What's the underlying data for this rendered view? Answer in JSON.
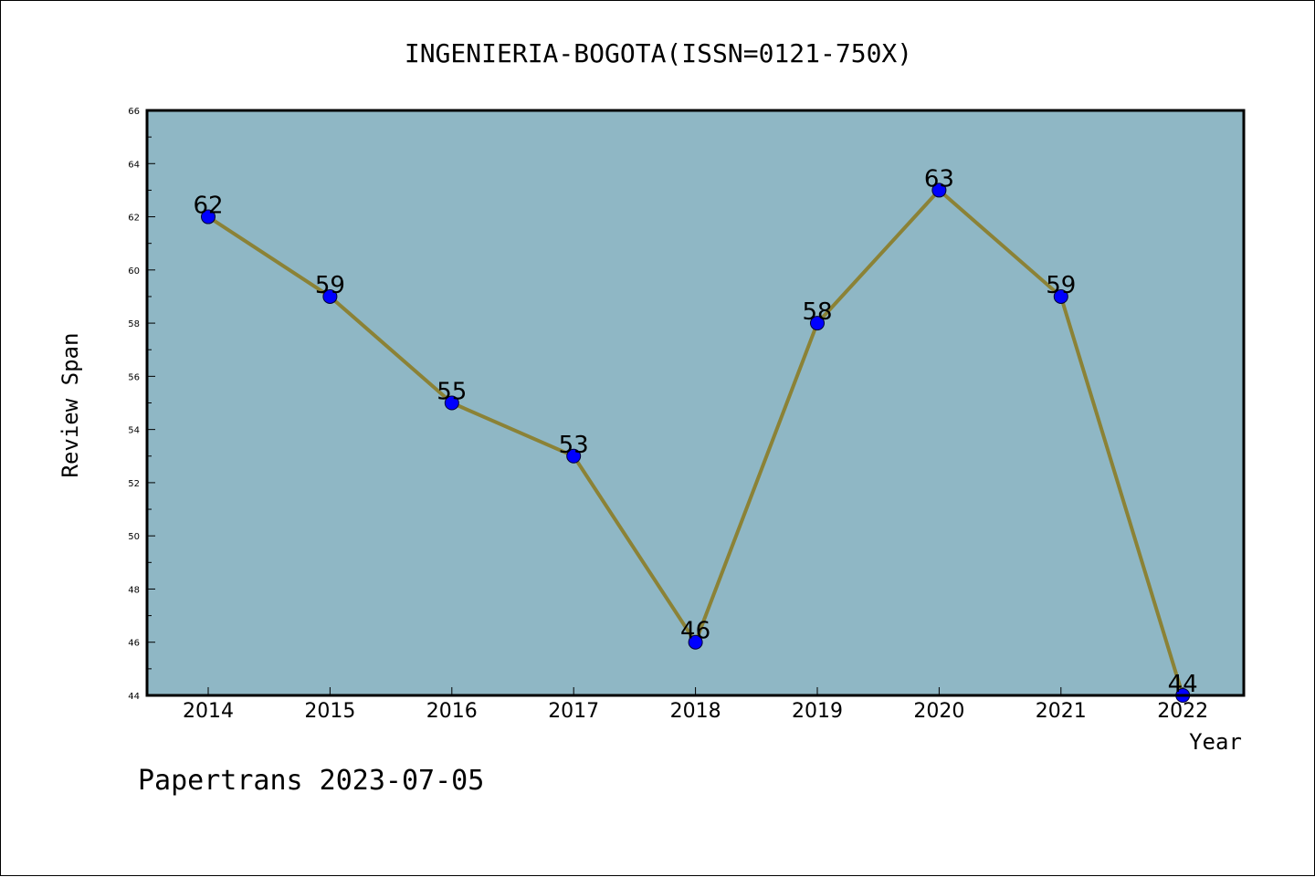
{
  "chart_data": {
    "type": "line",
    "title": "INGENIERIA-BOGOTA(ISSN=0121-750X)",
    "xlabel": "Year",
    "ylabel": "Review Span",
    "categories": [
      "2014",
      "2015",
      "2016",
      "2017",
      "2018",
      "2019",
      "2020",
      "2021",
      "2022"
    ],
    "values": [
      62,
      59,
      55,
      53,
      46,
      58,
      63,
      59,
      44
    ],
    "ylim": [
      44,
      66
    ],
    "yticks": [
      "44",
      "46",
      "48",
      "50",
      "52",
      "54",
      "56",
      "58",
      "60",
      "62",
      "64",
      "66"
    ],
    "data_labels": [
      "62",
      "59",
      "55",
      "53",
      "46",
      "58",
      "63",
      "59",
      "44"
    ],
    "grid": false,
    "plot_background": "#8fb7c5",
    "line_color": "#8b8236",
    "marker_color": "#0000ff"
  },
  "footer": {
    "watermark": "Papertrans 2023-07-05"
  }
}
